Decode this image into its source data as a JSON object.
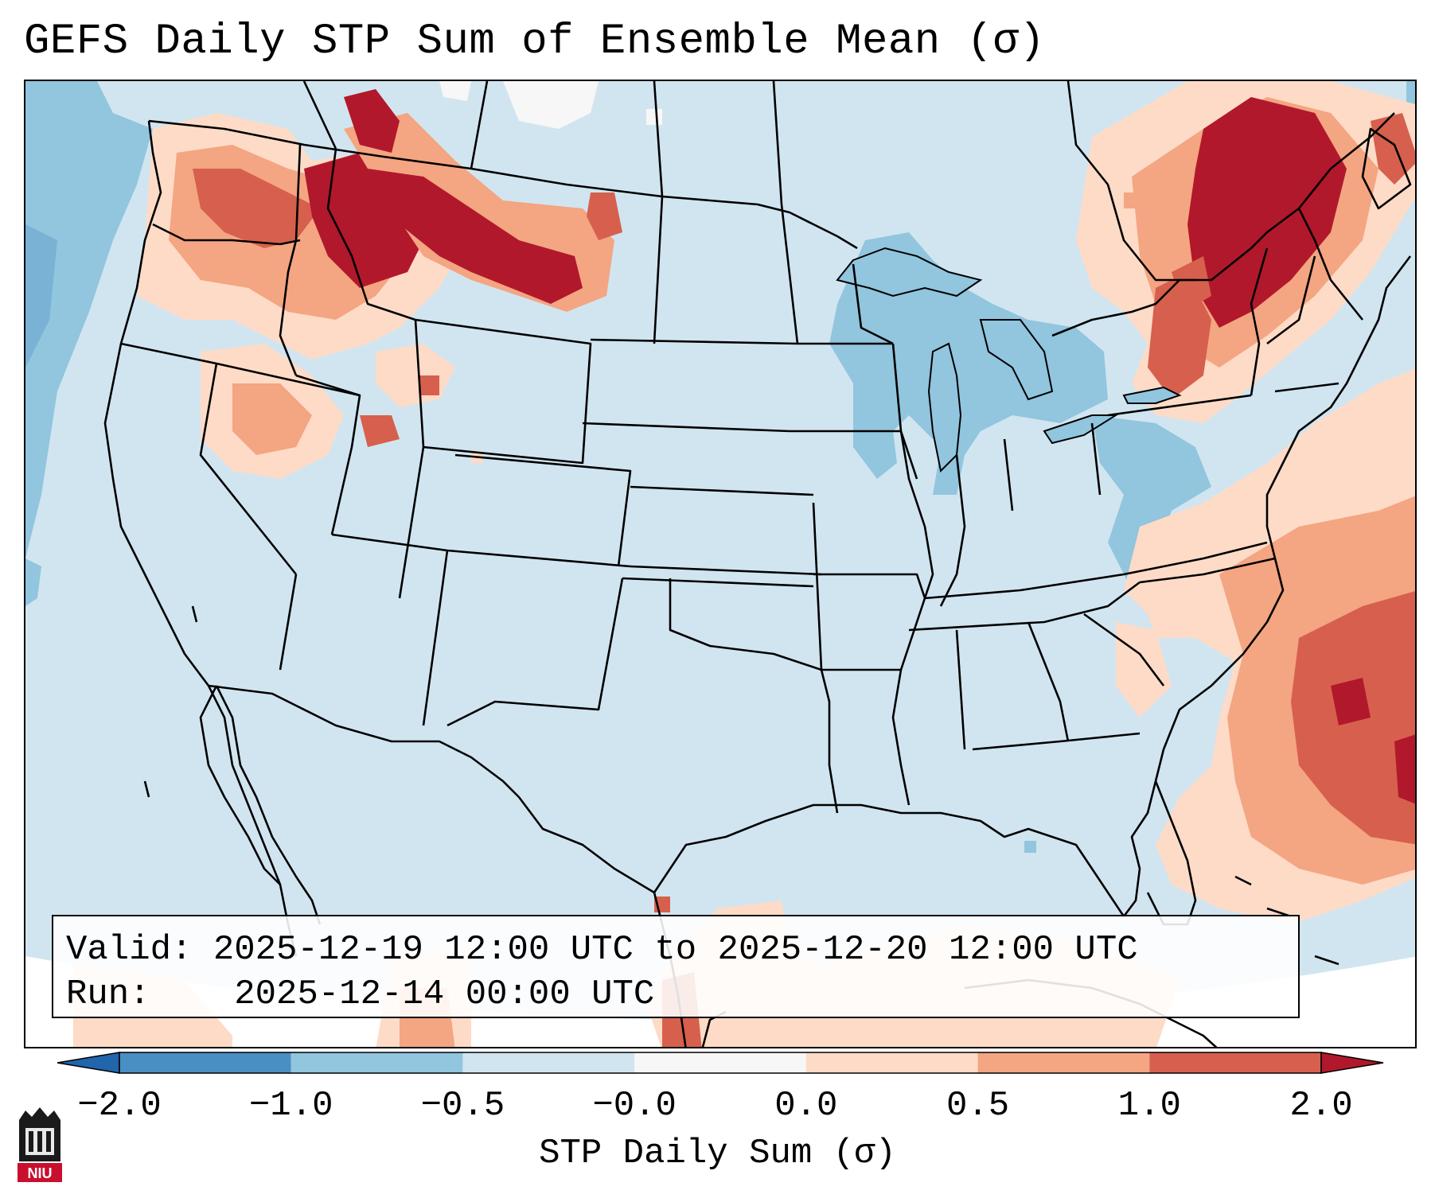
{
  "title": "GEFS Daily STP Sum of Ensemble Mean (σ)",
  "info": {
    "valid_label": "Valid:",
    "valid_value": "2025-12-19 12:00 UTC to 2025-12-20 12:00 UTC",
    "run_label": "Run:",
    "run_value": "2025-12-14 00:00 UTC"
  },
  "colorbar": {
    "label": "STP Daily Sum (σ)",
    "ticks": [
      "−2.0",
      "−1.0",
      "−0.5",
      "−0.0",
      "0.0",
      "0.5",
      "1.0",
      "2.0"
    ],
    "bins": [
      {
        "range": "-2.0 to -1.0",
        "color": "#4a8fc4"
      },
      {
        "range": "-1.0 to -0.5",
        "color": "#92c5de"
      },
      {
        "range": "-0.5 to -0.0",
        "color": "#d1e5f0"
      },
      {
        "range": "-0.0 to 0.0",
        "color": "#f7f7f7"
      },
      {
        "range": "0.0 to 0.5",
        "color": "#fddbc7"
      },
      {
        "range": "0.5 to 1.0",
        "color": "#f4a582"
      },
      {
        "range": "1.0 to 2.0",
        "color": "#d6604d"
      }
    ],
    "under_color": "#2166ac",
    "over_color": "#b2182b"
  },
  "map": {
    "background_color": "#d1e5f0",
    "off_domain_color": "#ffffff",
    "positive_region_colors": [
      "#fddbc7",
      "#f4a582",
      "#d6604d",
      "#b2182b"
    ],
    "negative_region_colors": [
      "#92c5de",
      "#4a8fc4"
    ]
  },
  "logo": {
    "text": "NIU",
    "color": "#c8102e"
  }
}
